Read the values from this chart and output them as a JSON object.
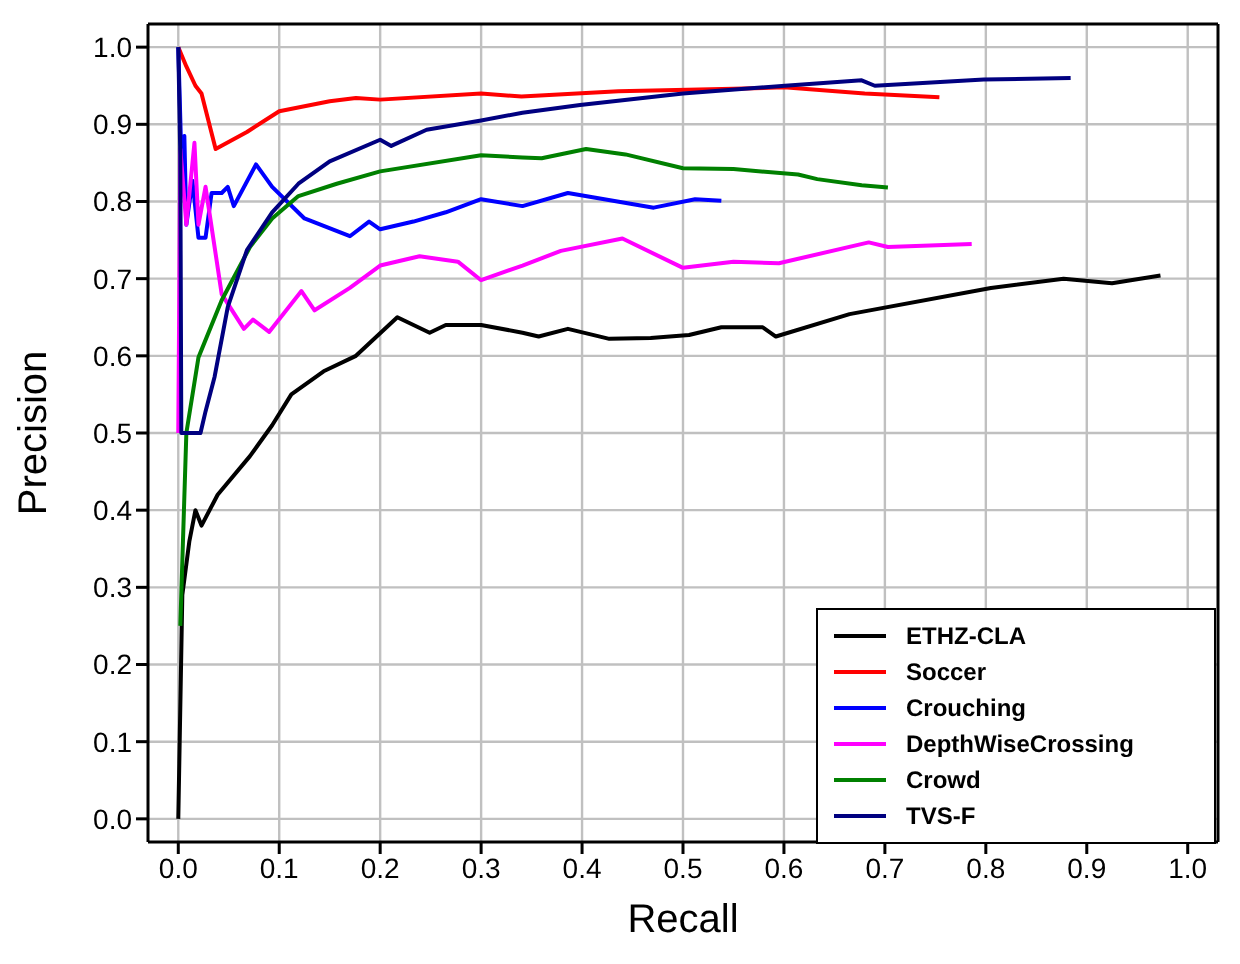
{
  "chart_data": {
    "type": "line",
    "xlabel": "Recall",
    "ylabel": "Precision",
    "xlim": [
      -0.03,
      1.03
    ],
    "ylim": [
      -0.03,
      1.03
    ],
    "xticks": [
      {
        "value": 0,
        "label": "0.0"
      },
      {
        "value": 0.1,
        "label": "0.1"
      },
      {
        "value": 0.2,
        "label": "0.2"
      },
      {
        "value": 0.3,
        "label": "0.3"
      },
      {
        "value": 0.4,
        "label": "0.4"
      },
      {
        "value": 0.5,
        "label": "0.5"
      },
      {
        "value": 0.6,
        "label": "0.6"
      },
      {
        "value": 0.7,
        "label": "0.7"
      },
      {
        "value": 0.8,
        "label": "0.8"
      },
      {
        "value": 0.9,
        "label": "0.9"
      },
      {
        "value": 1,
        "label": "1.0"
      }
    ],
    "yticks": [
      {
        "value": 0,
        "label": "0.0"
      },
      {
        "value": 0.1,
        "label": "0.1"
      },
      {
        "value": 0.2,
        "label": "0.2"
      },
      {
        "value": 0.3,
        "label": "0.3"
      },
      {
        "value": 0.4,
        "label": "0.4"
      },
      {
        "value": 0.5,
        "label": "0.5"
      },
      {
        "value": 0.6,
        "label": "0.6"
      },
      {
        "value": 0.7,
        "label": "0.7"
      },
      {
        "value": 0.8,
        "label": "0.8"
      },
      {
        "value": 0.9,
        "label": "0.9"
      },
      {
        "value": 1,
        "label": "1.0"
      }
    ],
    "grid": true,
    "legend": "bottom right",
    "marker": "none",
    "line_style": "solid",
    "series": [
      {
        "name": "ETHZ-CLA",
        "color": "#000000",
        "x": [
          0,
          0.004,
          0.011,
          0.017,
          0.023,
          0.039,
          0.071,
          0.093,
          0.112,
          0.144,
          0.176,
          0.217,
          0.249,
          0.265,
          0.3,
          0.341,
          0.357,
          0.386,
          0.427,
          0.468,
          0.506,
          0.538,
          0.579,
          0.592,
          0.665,
          0.805,
          0.877,
          0.925,
          0.973
        ],
        "values": [
          0,
          0.29,
          0.36,
          0.4,
          0.38,
          0.42,
          0.47,
          0.51,
          0.55,
          0.58,
          0.6,
          0.65,
          0.63,
          0.64,
          0.64,
          0.63,
          0.625,
          0.635,
          0.622,
          0.623,
          0.627,
          0.637,
          0.637,
          0.625,
          0.654,
          0.688,
          0.7,
          0.694,
          0.704
        ]
      },
      {
        "name": "Soccer",
        "color": "#ff0000",
        "x": [
          0,
          0.008,
          0.017,
          0.023,
          0.037,
          0.068,
          0.1,
          0.15,
          0.176,
          0.2,
          0.3,
          0.34,
          0.436,
          0.55,
          0.6,
          0.68,
          0.754
        ],
        "values": [
          1,
          0.975,
          0.95,
          0.94,
          0.868,
          0.89,
          0.917,
          0.93,
          0.934,
          0.932,
          0.94,
          0.936,
          0.943,
          0.946,
          0.948,
          0.94,
          0.935
        ]
      },
      {
        "name": "Crouching",
        "color": "#0000ff",
        "x": [
          0,
          0.003,
          0.006,
          0.008,
          0.014,
          0.02,
          0.027,
          0.033,
          0.043,
          0.049,
          0.055,
          0.077,
          0.093,
          0.125,
          0.17,
          0.189,
          0.2,
          0.233,
          0.265,
          0.3,
          0.341,
          0.386,
          0.471,
          0.512,
          0.538
        ],
        "values": [
          1,
          0.86,
          0.885,
          0.77,
          0.827,
          0.753,
          0.753,
          0.811,
          0.811,
          0.819,
          0.794,
          0.848,
          0.819,
          0.778,
          0.755,
          0.774,
          0.764,
          0.774,
          0.786,
          0.803,
          0.794,
          0.811,
          0.792,
          0.803,
          0.801
        ]
      },
      {
        "name": "DepthWiseCrossing",
        "color": "#ff00ff",
        "x": [
          0,
          0.002,
          0.008,
          0.016,
          0.02,
          0.027,
          0.043,
          0.065,
          0.074,
          0.09,
          0.122,
          0.135,
          0.17,
          0.2,
          0.239,
          0.277,
          0.3,
          0.341,
          0.379,
          0.44,
          0.5,
          0.55,
          0.595,
          0.684,
          0.703,
          0.786
        ],
        "values": [
          0.5,
          0.868,
          0.77,
          0.876,
          0.77,
          0.819,
          0.68,
          0.635,
          0.647,
          0.631,
          0.684,
          0.659,
          0.688,
          0.717,
          0.729,
          0.722,
          0.698,
          0.717,
          0.736,
          0.752,
          0.714,
          0.722,
          0.72,
          0.747,
          0.741,
          0.745
        ]
      },
      {
        "name": "Crowd",
        "color": "#008000",
        "x": [
          0.002,
          0.008,
          0.02,
          0.043,
          0.071,
          0.093,
          0.119,
          0.157,
          0.2,
          0.3,
          0.341,
          0.36,
          0.404,
          0.443,
          0.5,
          0.55,
          0.614,
          0.633,
          0.677,
          0.703
        ],
        "values": [
          0.25,
          0.5,
          0.598,
          0.672,
          0.741,
          0.778,
          0.807,
          0.823,
          0.839,
          0.86,
          0.857,
          0.856,
          0.868,
          0.861,
          0.843,
          0.842,
          0.835,
          0.829,
          0.821,
          0.818
        ]
      },
      {
        "name": "TVS-F",
        "color": "#000080",
        "x": [
          0,
          0.002,
          0.003,
          0.022,
          0.027,
          0.036,
          0.049,
          0.068,
          0.093,
          0.119,
          0.15,
          0.2,
          0.211,
          0.246,
          0.3,
          0.341,
          0.398,
          0.5,
          0.601,
          0.677,
          0.69,
          0.798,
          0.884
        ],
        "values": [
          1,
          0.86,
          0.5,
          0.5,
          0.528,
          0.573,
          0.663,
          0.737,
          0.786,
          0.823,
          0.852,
          0.88,
          0.872,
          0.893,
          0.905,
          0.915,
          0.925,
          0.94,
          0.95,
          0.957,
          0.95,
          0.958,
          0.96
        ]
      }
    ]
  }
}
